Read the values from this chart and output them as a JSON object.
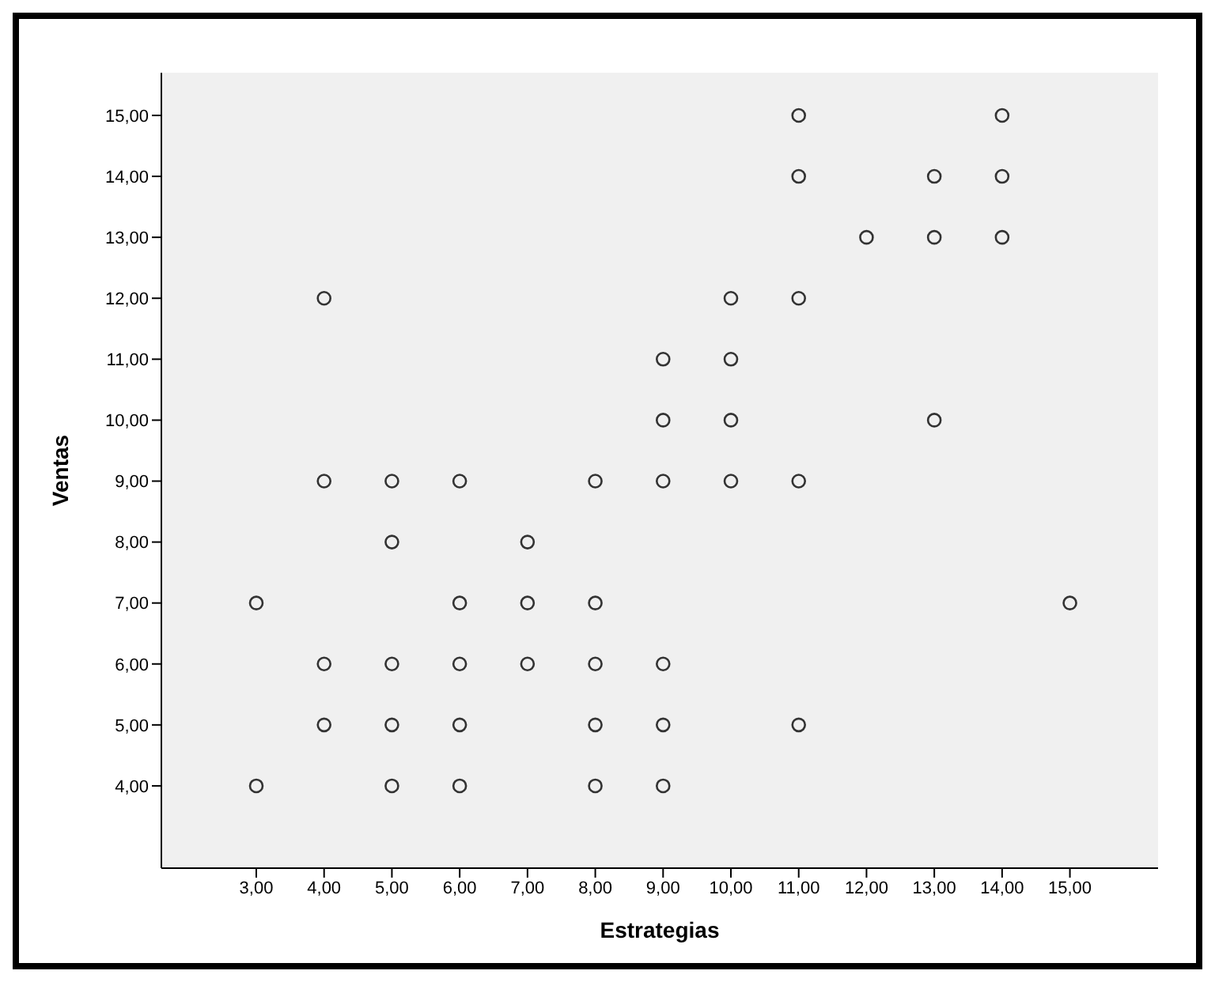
{
  "chart_data": {
    "type": "scatter",
    "xlabel": "Estrategias",
    "ylabel": "Ventas",
    "marker": "circle",
    "color": "#333333",
    "x": [
      3,
      3,
      4,
      4,
      4,
      4,
      5,
      5,
      5,
      5,
      5,
      6,
      6,
      6,
      6,
      6,
      7,
      7,
      7,
      8,
      8,
      8,
      8,
      8,
      9,
      9,
      9,
      9,
      9,
      9,
      10,
      10,
      10,
      10,
      11,
      11,
      11,
      11,
      11,
      12,
      13,
      13,
      13,
      14,
      14,
      14,
      15
    ],
    "values": [
      7,
      4,
      12,
      9,
      6,
      5,
      9,
      8,
      6,
      5,
      4,
      9,
      7,
      6,
      5,
      4,
      8,
      7,
      6,
      9,
      7,
      6,
      5,
      4,
      11,
      10,
      9,
      6,
      5,
      4,
      12,
      11,
      10,
      9,
      15,
      14,
      12,
      9,
      5,
      13,
      14,
      13,
      10,
      15,
      14,
      13,
      7
    ],
    "xlim": [
      1.6,
      16.3
    ],
    "ylim": [
      2.65,
      15.7
    ],
    "xticks": [
      {
        "value": 3,
        "label": "3,00"
      },
      {
        "value": 4,
        "label": "4,00"
      },
      {
        "value": 5,
        "label": "5,00"
      },
      {
        "value": 6,
        "label": "6,00"
      },
      {
        "value": 7,
        "label": "7,00"
      },
      {
        "value": 8,
        "label": "8,00"
      },
      {
        "value": 9,
        "label": "9,00"
      },
      {
        "value": 10,
        "label": "10,00"
      },
      {
        "value": 11,
        "label": "11,00"
      },
      {
        "value": 12,
        "label": "12,00"
      },
      {
        "value": 13,
        "label": "13,00"
      },
      {
        "value": 14,
        "label": "14,00"
      },
      {
        "value": 15,
        "label": "15,00"
      }
    ],
    "yticks": [
      {
        "value": 4,
        "label": "4,00"
      },
      {
        "value": 5,
        "label": "5,00"
      },
      {
        "value": 6,
        "label": "6,00"
      },
      {
        "value": 7,
        "label": "7,00"
      },
      {
        "value": 8,
        "label": "8,00"
      },
      {
        "value": 9,
        "label": "9,00"
      },
      {
        "value": 10,
        "label": "10,00"
      },
      {
        "value": 11,
        "label": "11,00"
      },
      {
        "value": 12,
        "label": "12,00"
      },
      {
        "value": 13,
        "label": "13,00"
      },
      {
        "value": 14,
        "label": "14,00"
      },
      {
        "value": 15,
        "label": "15,00"
      }
    ]
  }
}
